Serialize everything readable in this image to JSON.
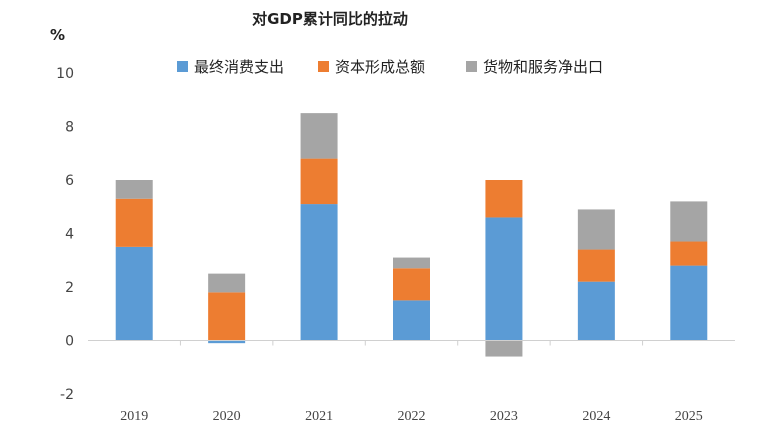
{
  "chart_data": {
    "type": "bar",
    "stacked": true,
    "title": "对GDP累计同比的拉动",
    "ylabel": "%",
    "xlabel": "",
    "categories": [
      "2019",
      "2020",
      "2021",
      "2022",
      "2023",
      "2024",
      "2025"
    ],
    "series": [
      {
        "name": "最终消费支出",
        "color": "#5b9bd5",
        "values": [
          3.5,
          -0.1,
          5.1,
          1.5,
          4.6,
          2.2,
          2.8
        ]
      },
      {
        "name": "资本形成总额",
        "color": "#ed7d31",
        "values": [
          1.8,
          1.8,
          1.7,
          1.2,
          1.4,
          1.2,
          0.9
        ]
      },
      {
        "name": "货物和服务净出口",
        "color": "#a5a5a5",
        "values": [
          0.7,
          0.7,
          1.7,
          0.4,
          -0.6,
          1.5,
          1.5
        ]
      }
    ],
    "ylim": [
      -2,
      10
    ],
    "yticks": [
      -2,
      0,
      2,
      4,
      6,
      8,
      10
    ],
    "grid": false,
    "legend_position": "top"
  }
}
